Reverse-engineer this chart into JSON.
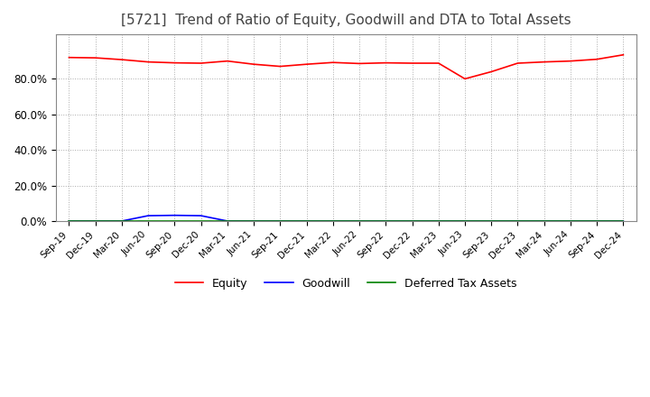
{
  "title": "[5721]  Trend of Ratio of Equity, Goodwill and DTA to Total Assets",
  "title_fontsize": 11,
  "background_color": "#ffffff",
  "grid_color": "#aaaaaa",
  "xlabels": [
    "Sep-19",
    "Dec-19",
    "Mar-20",
    "Jun-20",
    "Sep-20",
    "Dec-20",
    "Mar-21",
    "Jun-21",
    "Sep-21",
    "Dec-21",
    "Mar-22",
    "Jun-22",
    "Sep-22",
    "Dec-22",
    "Mar-23",
    "Jun-23",
    "Sep-23",
    "Dec-23",
    "Mar-24",
    "Jun-24",
    "Sep-24",
    "Dec-24"
  ],
  "equity": [
    0.92,
    0.918,
    0.908,
    0.895,
    0.89,
    0.888,
    0.9,
    0.882,
    0.87,
    0.882,
    0.892,
    0.886,
    0.89,
    0.888,
    0.888,
    0.8,
    0.84,
    0.888,
    0.895,
    0.9,
    0.91,
    0.935
  ],
  "goodwill": [
    0.0,
    0.0,
    0.0,
    0.03,
    0.032,
    0.03,
    0.0,
    0.0,
    0.0,
    0.0,
    0.0,
    0.0,
    0.0,
    0.0,
    0.0,
    0.0,
    0.0,
    0.0,
    0.0,
    0.0,
    0.0,
    0.0
  ],
  "dta": [
    0.0,
    0.0,
    0.0,
    0.0,
    0.0,
    0.0,
    0.0,
    0.0,
    0.0,
    0.0,
    0.0,
    0.0,
    0.0,
    0.0,
    0.0,
    0.0,
    0.0,
    0.0,
    0.0,
    0.0,
    0.0,
    0.0
  ],
  "equity_color": "#ff0000",
  "goodwill_color": "#0000ff",
  "dta_color": "#008000",
  "ylim": [
    0.0,
    1.05
  ],
  "yticks": [
    0.0,
    0.2,
    0.4,
    0.6,
    0.8
  ],
  "ytick_labels": [
    "0.0%",
    "20.0%",
    "40.0%",
    "60.0%",
    "80.0%"
  ],
  "legend_labels": [
    "Equity",
    "Goodwill",
    "Deferred Tax Assets"
  ]
}
